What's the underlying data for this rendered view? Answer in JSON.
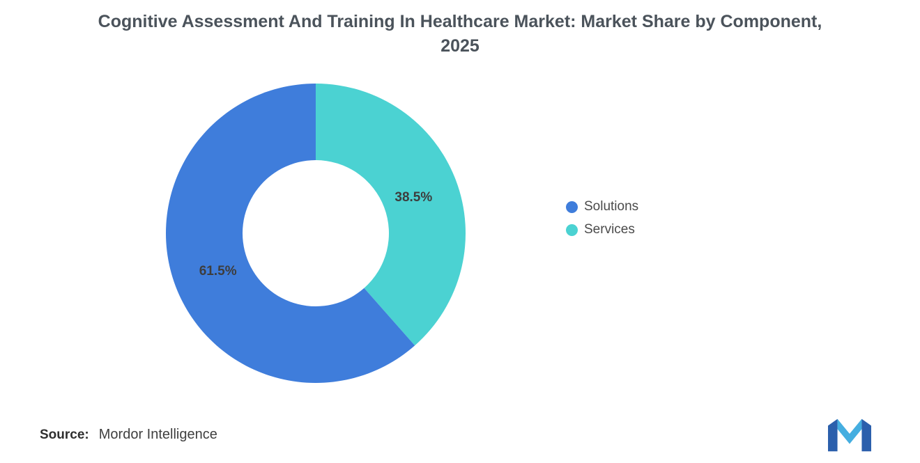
{
  "chart_data": {
    "type": "pie",
    "donut": true,
    "title": "Cognitive Assessment And Training In Healthcare Market: Market Share by Component, 2025",
    "start_angle": "top",
    "direction": "clockwise",
    "slices_clockwise_from_top": [
      {
        "label": "Services",
        "value": 38.5,
        "display": "38.5%",
        "color": "#4bd2d2"
      },
      {
        "label": "Solutions",
        "value": 61.5,
        "display": "61.5%",
        "color": "#3f7ddb"
      }
    ],
    "legend": [
      "Solutions",
      "Services"
    ],
    "legend_position": "right",
    "background": "#ffffff"
  },
  "source": {
    "label": "Source:",
    "value": "Mordor Intelligence"
  },
  "logo": {
    "icon_name": "mordor-intelligence-logo",
    "colors": [
      "#2b5fac",
      "#45aee0"
    ]
  }
}
